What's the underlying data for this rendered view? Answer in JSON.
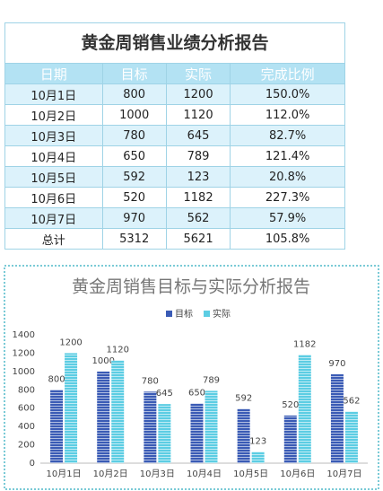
{
  "table": {
    "title": "黄金周销售业绩分析报告",
    "columns": [
      "日期",
      "目标",
      "实际",
      "完成比例"
    ],
    "rows": [
      [
        "10月1日",
        "800",
        "1200",
        "150.0%"
      ],
      [
        "10月2日",
        "1000",
        "1120",
        "112.0%"
      ],
      [
        "10月3日",
        "780",
        "645",
        "82.7%"
      ],
      [
        "10月4日",
        "650",
        "789",
        "121.4%"
      ],
      [
        "10月5日",
        "592",
        "123",
        "20.8%"
      ],
      [
        "10月6日",
        "520",
        "1182",
        "227.3%"
      ],
      [
        "10月7日",
        "970",
        "562",
        "57.9%"
      ],
      [
        "总计",
        "5312",
        "5621",
        "105.8%"
      ]
    ]
  },
  "chart_data": {
    "type": "bar",
    "title": "黄金周销售目标与实际分析报告",
    "categories": [
      "10月1日",
      "10月2日",
      "10月3日",
      "10月4日",
      "10月5日",
      "10月6日",
      "10月7日"
    ],
    "series": [
      {
        "name": "目标",
        "color": "#3a5bb5",
        "values": [
          800,
          1000,
          780,
          650,
          592,
          520,
          970
        ]
      },
      {
        "name": "实际",
        "color": "#5ccde3",
        "values": [
          1200,
          1120,
          645,
          789,
          123,
          1182,
          562
        ]
      }
    ],
    "ylim": [
      0,
      1400
    ],
    "yticks": [
      0,
      200,
      400,
      600,
      800,
      1000,
      1200,
      1400
    ],
    "grid": false,
    "legend": "top"
  }
}
